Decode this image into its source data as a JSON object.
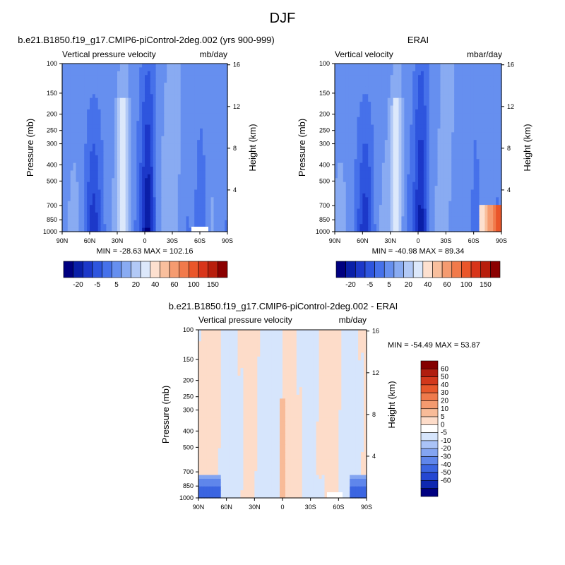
{
  "figure": {
    "title": "DJF"
  },
  "colors": {
    "blues": [
      "#000080",
      "#0a1fa8",
      "#1c38c9",
      "#2e55de",
      "#4671ea",
      "#668fef",
      "#89abf2",
      "#b2c9f6",
      "#dce8fb"
    ],
    "reds": [
      "#fde0cf",
      "#f9bf9d",
      "#f59b70",
      "#f17a4b",
      "#ea562a",
      "#d8351a",
      "#b81e0c",
      "#8b0000"
    ],
    "diff_blues": [
      "#000080",
      "#0f28b0",
      "#2447d2",
      "#3b65e1",
      "#5f86eb",
      "#84a5f1",
      "#aac3f7",
      "#d6e5fc"
    ],
    "diff_reds": [
      "#fddcc9",
      "#f8bb98",
      "#f49a6f",
      "#ef7a4c",
      "#e7582c",
      "#d2381c",
      "#b01d0f",
      "#840000"
    ],
    "diff_zero": "#ffffff"
  },
  "chart_data": [
    {
      "type": "heatmap",
      "title": "b.e21.B1850.f19_g17.CMIP6-piControl-2deg.002 (yrs 900-999)",
      "left_label": "Vertical pressure velocity",
      "right_label": "mb/day",
      "ylabel": "Pressure (mb)",
      "ylabel_right": "Height (km)",
      "x_ticks": [
        "90N",
        "60N",
        "30N",
        "0",
        "30S",
        "60S",
        "90S"
      ],
      "y_ticks": [
        "100",
        "150",
        "200",
        "250",
        "300",
        "400",
        "500",
        "700",
        "850",
        "1000"
      ],
      "y_right_ticks": [
        "16",
        "12",
        "8",
        "4"
      ],
      "xlim": [
        90,
        -90
      ],
      "ylim": [
        100,
        1000
      ],
      "yscale": "log",
      "stats": "MIN = -28.63  MAX = 102.16",
      "min": -28.63,
      "max": 102.16,
      "colorbar": {
        "labels": [
          "-20",
          "-5",
          "5",
          "20",
          "40",
          "60",
          "100",
          "150"
        ],
        "n_boxes": 17,
        "orientation": "horizontal"
      }
    },
    {
      "type": "heatmap",
      "title": "ERAI",
      "left_label": "Vertical velocity",
      "right_label": "mbar/day",
      "ylabel": "Pressure (mb)",
      "ylabel_right": "Height (km)",
      "x_ticks": [
        "90N",
        "60N",
        "30N",
        "0",
        "30S",
        "60S",
        "90S"
      ],
      "y_ticks": [
        "100",
        "150",
        "200",
        "250",
        "300",
        "400",
        "500",
        "700",
        "850",
        "1000"
      ],
      "y_right_ticks": [
        "16",
        "12",
        "8",
        "4"
      ],
      "xlim": [
        90,
        -90
      ],
      "ylim": [
        100,
        1000
      ],
      "yscale": "log",
      "stats": "MIN = -40.98  MAX =  89.34",
      "min": -40.98,
      "max": 89.34,
      "colorbar": {
        "labels": [
          "-20",
          "-5",
          "5",
          "20",
          "40",
          "60",
          "100",
          "150"
        ],
        "n_boxes": 17,
        "orientation": "horizontal"
      }
    },
    {
      "type": "heatmap",
      "title": "b.e21.B1850.f19_g17.CMIP6-piControl-2deg.002 - ERAI",
      "left_label": "Vertical pressure velocity",
      "right_label": "mb/day",
      "ylabel": "Pressure (mb)",
      "ylabel_right": "Height (km)",
      "x_ticks": [
        "90N",
        "60N",
        "30N",
        "0",
        "30S",
        "60S",
        "90S"
      ],
      "y_ticks": [
        "100",
        "150",
        "200",
        "250",
        "300",
        "400",
        "500",
        "700",
        "850",
        "1000"
      ],
      "y_right_ticks": [
        "16",
        "12",
        "8",
        "4"
      ],
      "xlim": [
        90,
        -90
      ],
      "ylim": [
        100,
        1000
      ],
      "yscale": "log",
      "stats": "MIN = -54.49  MAX =  53.87",
      "min": -54.49,
      "max": 53.87,
      "colorbar": {
        "labels": [
          "60",
          "50",
          "40",
          "30",
          "20",
          "10",
          "5",
          "0",
          "-5",
          "-10",
          "-20",
          "-30",
          "-40",
          "-50",
          "-60"
        ],
        "n_boxes": 17,
        "orientation": "vertical"
      }
    }
  ]
}
